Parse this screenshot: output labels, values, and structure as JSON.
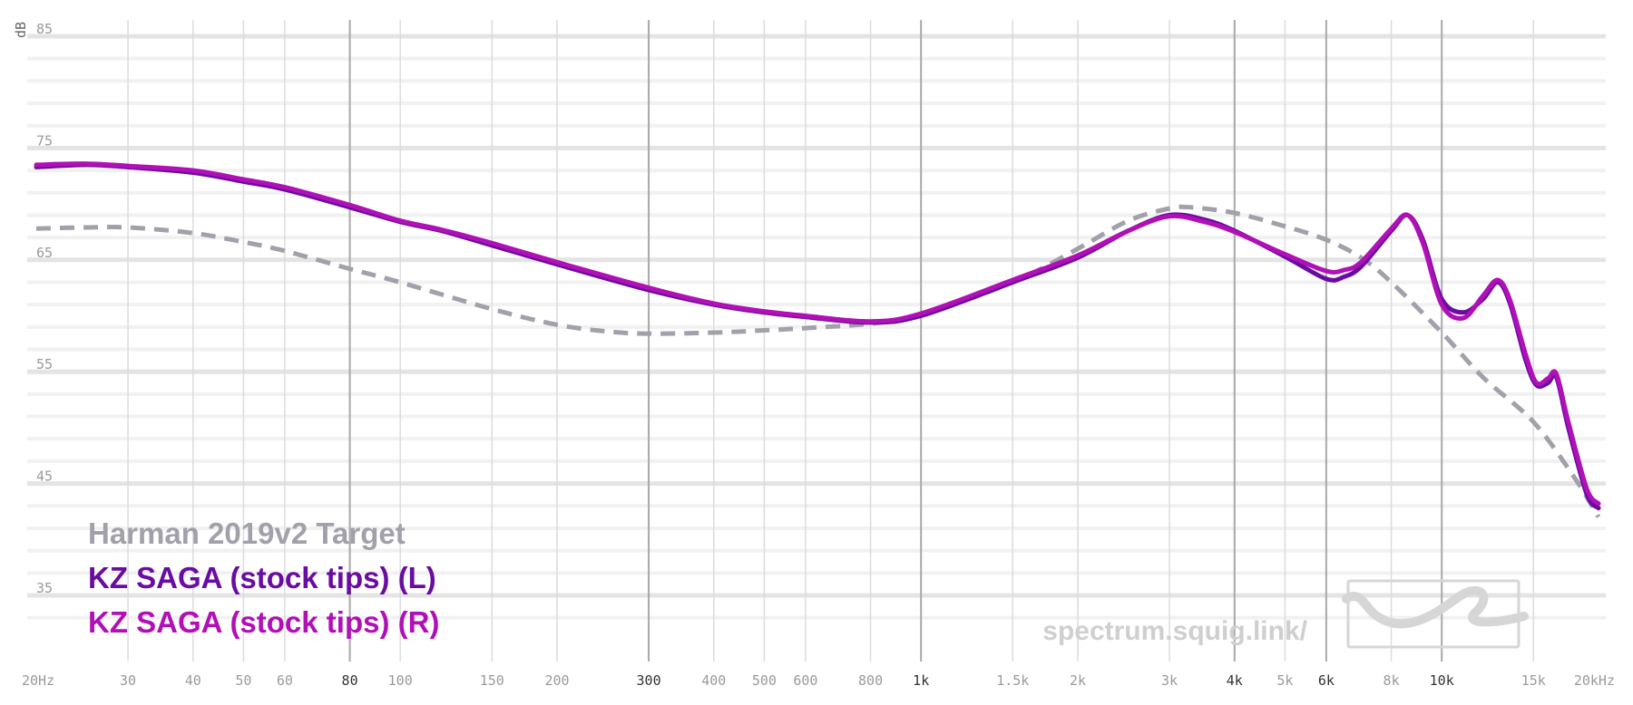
{
  "chart_data": {
    "type": "line",
    "title": "",
    "xlabel": "",
    "ylabel": "dB",
    "x_scale": "log",
    "xlim": [
      20,
      20000
    ],
    "ylim": [
      30,
      86
    ],
    "grid": true,
    "legend_position": "bottom-left",
    "watermark": "spectrum.squig.link/",
    "x_ticks": [
      {
        "value": 20,
        "label": "20Hz",
        "major": false
      },
      {
        "value": 30,
        "label": "30",
        "major": false
      },
      {
        "value": 40,
        "label": "40",
        "major": false
      },
      {
        "value": 50,
        "label": "50",
        "major": false
      },
      {
        "value": 60,
        "label": "60",
        "major": false
      },
      {
        "value": 80,
        "label": "80",
        "major": true
      },
      {
        "value": 100,
        "label": "100",
        "major": false
      },
      {
        "value": 150,
        "label": "150",
        "major": false
      },
      {
        "value": 200,
        "label": "200",
        "major": false
      },
      {
        "value": 300,
        "label": "300",
        "major": true
      },
      {
        "value": 400,
        "label": "400",
        "major": false
      },
      {
        "value": 500,
        "label": "500",
        "major": false
      },
      {
        "value": 600,
        "label": "600",
        "major": false
      },
      {
        "value": 800,
        "label": "800",
        "major": false
      },
      {
        "value": 1000,
        "label": "1k",
        "major": true
      },
      {
        "value": 1500,
        "label": "1.5k",
        "major": false
      },
      {
        "value": 2000,
        "label": "2k",
        "major": false
      },
      {
        "value": 3000,
        "label": "3k",
        "major": false
      },
      {
        "value": 4000,
        "label": "4k",
        "major": true
      },
      {
        "value": 5000,
        "label": "5k",
        "major": false
      },
      {
        "value": 6000,
        "label": "6k",
        "major": true
      },
      {
        "value": 8000,
        "label": "8k",
        "major": false
      },
      {
        "value": 10000,
        "label": "10k",
        "major": true
      },
      {
        "value": 15000,
        "label": "15k",
        "major": false
      },
      {
        "value": 20000,
        "label": "20kHz",
        "major": false
      }
    ],
    "y_ticks": [
      {
        "value": 85,
        "label": "85"
      },
      {
        "value": 75,
        "label": "75"
      },
      {
        "value": 65,
        "label": "65"
      },
      {
        "value": 55,
        "label": "55"
      },
      {
        "value": 45,
        "label": "45"
      },
      {
        "value": 35,
        "label": "35"
      }
    ],
    "series": [
      {
        "name": "Harman 2019v2 Target",
        "color": "#a2a0aa",
        "dashed": true,
        "x": [
          20,
          25,
          30,
          40,
          50,
          60,
          80,
          100,
          150,
          200,
          250,
          300,
          400,
          500,
          600,
          800,
          1000,
          1500,
          2000,
          2500,
          3000,
          3300,
          4000,
          5000,
          6000,
          7000,
          8000,
          10000,
          12000,
          15000,
          18000,
          20000
        ],
        "y": [
          67.8,
          67.9,
          67.9,
          67.4,
          66.6,
          65.8,
          64.2,
          63.0,
          60.6,
          59.2,
          58.6,
          58.4,
          58.5,
          58.7,
          58.9,
          59.3,
          60.1,
          63.0,
          66.0,
          68.5,
          69.6,
          69.7,
          69.2,
          68.0,
          66.8,
          65.2,
          63.0,
          58.5,
          54.5,
          50.5,
          45.5,
          42.0
        ]
      },
      {
        "name": "KZ SAGA (stock tips) (L)",
        "color": "#6a0ca2",
        "dashed": false,
        "x": [
          20,
          25,
          30,
          40,
          50,
          60,
          80,
          100,
          120,
          150,
          200,
          300,
          400,
          500,
          600,
          800,
          1000,
          1500,
          2000,
          2500,
          3000,
          3500,
          4000,
          5000,
          6000,
          6500,
          7000,
          8000,
          8600,
          9200,
          10000,
          11000,
          12000,
          12800,
          13500,
          14500,
          15200,
          16000,
          16600,
          17500,
          19000,
          20000
        ],
        "y": [
          73.3,
          73.5,
          73.3,
          72.8,
          72.0,
          71.3,
          69.7,
          68.4,
          67.6,
          66.3,
          64.6,
          62.3,
          61.0,
          60.3,
          59.9,
          59.4,
          60.0,
          63.0,
          65.2,
          67.6,
          69.0,
          68.6,
          67.6,
          65.3,
          63.3,
          63.5,
          64.4,
          67.6,
          69.0,
          66.8,
          61.5,
          60.3,
          61.5,
          63.0,
          61.2,
          56.0,
          53.8,
          54.0,
          54.5,
          50.0,
          44.0,
          42.8
        ]
      },
      {
        "name": "KZ SAGA (stock tips) (R)",
        "color": "#b010b6",
        "dashed": false,
        "x": [
          20,
          25,
          30,
          40,
          50,
          60,
          80,
          100,
          120,
          150,
          200,
          300,
          400,
          500,
          600,
          800,
          1000,
          1500,
          2000,
          2500,
          3000,
          3500,
          4000,
          5000,
          6000,
          6500,
          7000,
          8000,
          8600,
          9200,
          10000,
          11000,
          12000,
          12800,
          13500,
          14500,
          15200,
          16000,
          16600,
          17500,
          19000,
          20000
        ],
        "y": [
          73.5,
          73.6,
          73.4,
          73.0,
          72.2,
          71.5,
          69.9,
          68.5,
          67.7,
          66.5,
          64.8,
          62.5,
          61.1,
          60.4,
          60.0,
          59.5,
          60.2,
          63.2,
          65.4,
          67.6,
          68.9,
          68.4,
          67.5,
          65.5,
          64.0,
          64.1,
          64.8,
          67.8,
          69.0,
          66.5,
          61.0,
          59.8,
          61.8,
          63.2,
          61.5,
          56.5,
          54.0,
          54.4,
          54.8,
          50.5,
          44.5,
          43.2
        ]
      }
    ]
  }
}
